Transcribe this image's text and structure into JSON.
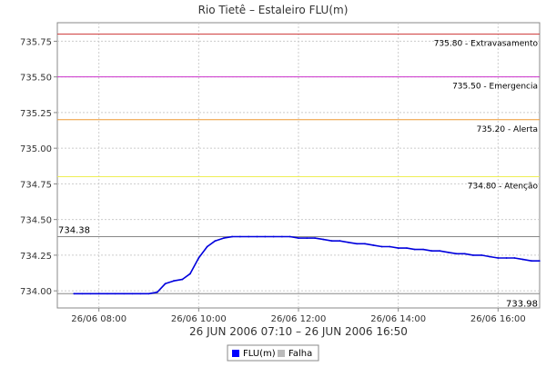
{
  "chart_data": {
    "type": "line",
    "title": "Rio Tietê – Estaleiro FLU(m)",
    "xlabel": "26 JUN 2006 07:10 – 26 JUN 2006 16:50",
    "ylabel": "",
    "x_unit": "hours (time of day, 26 JUN 2006)",
    "xlim": [
      7.1667,
      16.8333
    ],
    "ylim": [
      733.88,
      735.88
    ],
    "x_ticks": [
      8,
      10,
      12,
      14,
      16
    ],
    "x_tick_labels": [
      "26/06 08:00",
      "26/06 10:00",
      "26/06 12:00",
      "26/06 14:00",
      "26/06 16:00"
    ],
    "y_ticks": [
      734.0,
      734.25,
      734.5,
      734.75,
      735.0,
      735.25,
      735.5,
      735.75
    ],
    "y_tick_labels": [
      "734.00",
      "734.25",
      "734.50",
      "734.75",
      "735.00",
      "735.25",
      "735.50",
      "735.75"
    ],
    "grid": true,
    "legend_position": "bottom",
    "series": [
      {
        "name": "FLU(m)",
        "color": "#0000dd",
        "points": [
          [
            7.5,
            733.98
          ],
          [
            7.67,
            733.98
          ],
          [
            7.83,
            733.98
          ],
          [
            8.0,
            733.98
          ],
          [
            8.17,
            733.98
          ],
          [
            8.33,
            733.98
          ],
          [
            8.5,
            733.98
          ],
          [
            8.67,
            733.98
          ],
          [
            8.83,
            733.98
          ],
          [
            9.0,
            733.98
          ],
          [
            9.17,
            733.99
          ],
          [
            9.33,
            734.05
          ],
          [
            9.5,
            734.07
          ],
          [
            9.67,
            734.08
          ],
          [
            9.83,
            734.12
          ],
          [
            10.0,
            734.23
          ],
          [
            10.17,
            734.31
          ],
          [
            10.33,
            734.35
          ],
          [
            10.5,
            734.37
          ],
          [
            10.67,
            734.38
          ],
          [
            10.83,
            734.38
          ],
          [
            11.0,
            734.38
          ],
          [
            11.17,
            734.38
          ],
          [
            11.33,
            734.38
          ],
          [
            11.5,
            734.38
          ],
          [
            11.67,
            734.38
          ],
          [
            11.83,
            734.38
          ],
          [
            12.0,
            734.37
          ],
          [
            12.17,
            734.37
          ],
          [
            12.33,
            734.37
          ],
          [
            12.5,
            734.36
          ],
          [
            12.67,
            734.35
          ],
          [
            12.83,
            734.35
          ],
          [
            13.0,
            734.34
          ],
          [
            13.17,
            734.33
          ],
          [
            13.33,
            734.33
          ],
          [
            13.5,
            734.32
          ],
          [
            13.67,
            734.31
          ],
          [
            13.83,
            734.31
          ],
          [
            14.0,
            734.3
          ],
          [
            14.17,
            734.3
          ],
          [
            14.33,
            734.29
          ],
          [
            14.5,
            734.29
          ],
          [
            14.67,
            734.28
          ],
          [
            14.83,
            734.28
          ],
          [
            15.0,
            734.27
          ],
          [
            15.17,
            734.26
          ],
          [
            15.33,
            734.26
          ],
          [
            15.5,
            734.25
          ],
          [
            15.67,
            734.25
          ],
          [
            15.83,
            734.24
          ],
          [
            16.0,
            734.23
          ],
          [
            16.17,
            734.23
          ],
          [
            16.33,
            734.23
          ],
          [
            16.5,
            734.22
          ],
          [
            16.67,
            734.21
          ],
          [
            16.83,
            734.21
          ]
        ]
      }
    ],
    "thresholds": [
      {
        "value": 735.8,
        "label": "735.80 - Extravasamento",
        "color": "#d04040"
      },
      {
        "value": 735.5,
        "label": "735.50 - Emergencia",
        "color": "#cc33cc"
      },
      {
        "value": 735.2,
        "label": "735.20 - Alerta",
        "color": "#ee9933"
      },
      {
        "value": 734.8,
        "label": "734.80 - Atenção",
        "color": "#eeee55"
      }
    ],
    "reference_lines": [
      {
        "value": 734.38,
        "label": "734.38",
        "color": "#888888",
        "label_side": "left"
      },
      {
        "value": 733.98,
        "label": "733.98",
        "color": "#888888",
        "label_side": "right"
      }
    ],
    "legend": [
      {
        "label": "FLU(m)",
        "color": "#0000ff"
      },
      {
        "label": "Falha",
        "color": "#bbbbbb"
      }
    ]
  }
}
